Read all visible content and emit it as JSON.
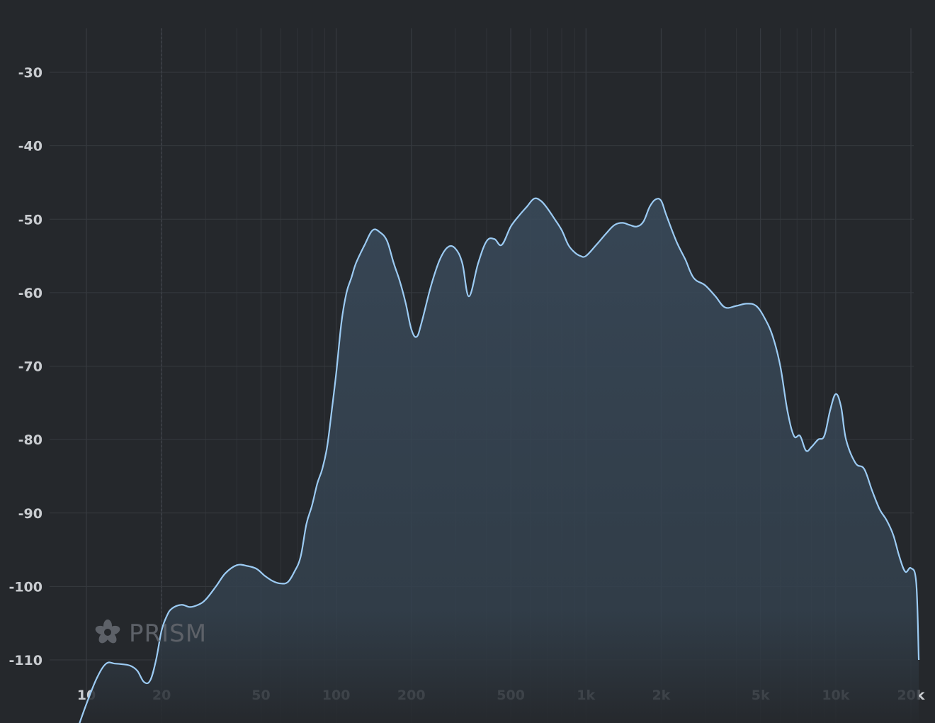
{
  "chart_data": {
    "type": "area",
    "x_scale": "log",
    "xlim": [
      9,
      22000
    ],
    "ylim": [
      -120,
      -24
    ],
    "grid": true,
    "xticks": [
      10,
      20,
      50,
      100,
      200,
      500,
      1000,
      2000,
      5000,
      10000,
      20000
    ],
    "xtick_labels": [
      "10",
      "20",
      "50",
      "100",
      "200",
      "500",
      "1k",
      "2k",
      "5k",
      "10k",
      "20k"
    ],
    "yticks": [
      -30,
      -40,
      -50,
      -60,
      -70,
      -80,
      -90,
      -100,
      -110
    ],
    "ytick_labels": [
      "-30",
      "-40",
      "-50",
      "-60",
      "-70",
      "-80",
      "-90",
      "-100",
      "-110"
    ],
    "series": [
      {
        "x": [
          9.3,
          10,
          11,
          12,
          13,
          14,
          15,
          16,
          17,
          18,
          19,
          20,
          21,
          22,
          24,
          26,
          28,
          30,
          33,
          36,
          40,
          44,
          48,
          52,
          56,
          60,
          64,
          68,
          72,
          76,
          80,
          84,
          88,
          92,
          96,
          100,
          105,
          110,
          115,
          120,
          130,
          140,
          150,
          160,
          170,
          180,
          190,
          200,
          210,
          220,
          240,
          260,
          280,
          300,
          320,
          340,
          370,
          400,
          430,
          460,
          500,
          540,
          580,
          620,
          660,
          700,
          750,
          800,
          850,
          900,
          950,
          1000,
          1100,
          1200,
          1300,
          1400,
          1500,
          1600,
          1700,
          1800,
          1900,
          2000,
          2100,
          2300,
          2500,
          2700,
          3000,
          3300,
          3600,
          4000,
          4400,
          4800,
          5200,
          5600,
          6000,
          6400,
          6800,
          7200,
          7600,
          8000,
          8500,
          9000,
          9500,
          10000,
          10500,
          11000,
          12000,
          13000,
          14000,
          15000,
          16000,
          17000,
          18000,
          19000,
          20000,
          21000,
          21500
        ],
        "values": [
          -119,
          -116,
          -112.5,
          -110.5,
          -110.5,
          -110.6,
          -110.8,
          -111.5,
          -113,
          -112.8,
          -110,
          -106,
          -104,
          -103,
          -102.5,
          -102.8,
          -102.5,
          -101.8,
          -100,
          -98.2,
          -97.1,
          -97.2,
          -97.6,
          -98.6,
          -99.3,
          -99.6,
          -99.4,
          -98,
          -96,
          -91.5,
          -89,
          -86,
          -84,
          -81,
          -76,
          -71,
          -64,
          -60,
          -58,
          -56,
          -53.5,
          -51.5,
          -51.8,
          -53,
          -56,
          -58.5,
          -61.5,
          -65,
          -66,
          -64,
          -59,
          -55.5,
          -53.8,
          -54,
          -56,
          -60.5,
          -56,
          -53,
          -52.7,
          -53.5,
          -51,
          -49.5,
          -48.3,
          -47.2,
          -47.5,
          -48.5,
          -50,
          -51.5,
          -53.5,
          -54.5,
          -55,
          -55,
          -53.5,
          -52,
          -50.8,
          -50.5,
          -50.8,
          -51,
          -50.3,
          -48.3,
          -47.3,
          -47.5,
          -49.5,
          -53,
          -55.5,
          -58,
          -59,
          -60.5,
          -62,
          -61.8,
          -61.5,
          -61.8,
          -63.5,
          -66,
          -70,
          -76,
          -79.5,
          -79.5,
          -81.5,
          -81,
          -80,
          -79.5,
          -76,
          -73.8,
          -75.5,
          -80,
          -83.2,
          -84,
          -87,
          -89.5,
          -91,
          -93,
          -96,
          -98,
          -97.5,
          -99.5,
          -110
        ]
      }
    ]
  },
  "brand": {
    "name": "PRISM",
    "icon": "flower-logo-icon"
  },
  "colors": {
    "background": "#25282c",
    "grid": "#363a3f",
    "line": "#9ccbf3",
    "fill": "#3a4b5c",
    "tick_text": "#c9ccd0",
    "brand": "#5d6168"
  }
}
